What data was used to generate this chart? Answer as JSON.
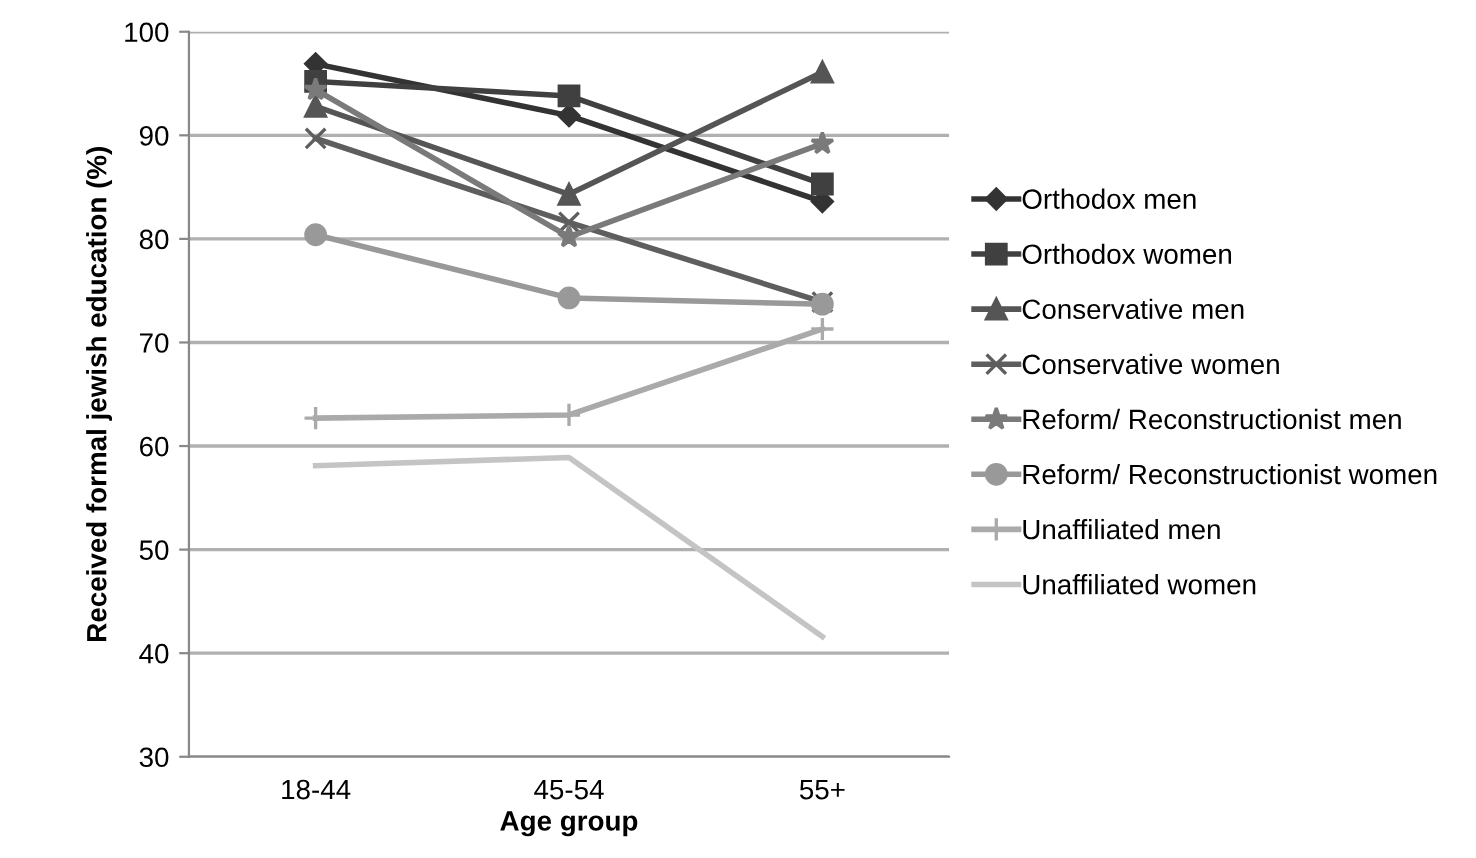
{
  "chart_data": {
    "type": "line",
    "xlabel": "Age group",
    "ylabel": "Received formal jewish education (%)",
    "categories": [
      "18-44",
      "45-54",
      "55+"
    ],
    "ylim": [
      30,
      100
    ],
    "yticks": [
      30,
      40,
      50,
      60,
      70,
      80,
      90,
      100
    ],
    "grid": "y",
    "legend": "right",
    "series": [
      {
        "name": "Orthodox men",
        "color": "#333333",
        "marker": "diamond",
        "values": [
          96.9,
          91.9,
          83.6
        ]
      },
      {
        "name": "Orthodox women",
        "color": "#404040",
        "marker": "square",
        "values": [
          95.2,
          93.8,
          85.3
        ]
      },
      {
        "name": "Conservative men",
        "color": "#555555",
        "marker": "triangle",
        "values": [
          92.8,
          84.3,
          96.1
        ]
      },
      {
        "name": "Conservative women",
        "color": "#5e5e5e",
        "marker": "cross",
        "values": [
          89.7,
          81.6,
          73.9
        ]
      },
      {
        "name": "Reform/ Reconstructionist men",
        "color": "#7a7a7a",
        "marker": "star",
        "values": [
          94.4,
          80.2,
          89.2
        ]
      },
      {
        "name": "Reform/ Reconstructionist women",
        "color": "#999999",
        "marker": "circle",
        "values": [
          80.4,
          74.3,
          73.7
        ]
      },
      {
        "name": "Unaffiliated men",
        "color": "#aaaaaa",
        "marker": "plus",
        "values": [
          62.7,
          63.0,
          71.3
        ]
      },
      {
        "name": "Unaffiliated women",
        "color": "#c4c4c4",
        "marker": "none",
        "values": [
          58.1,
          58.9,
          41.6
        ]
      }
    ]
  }
}
